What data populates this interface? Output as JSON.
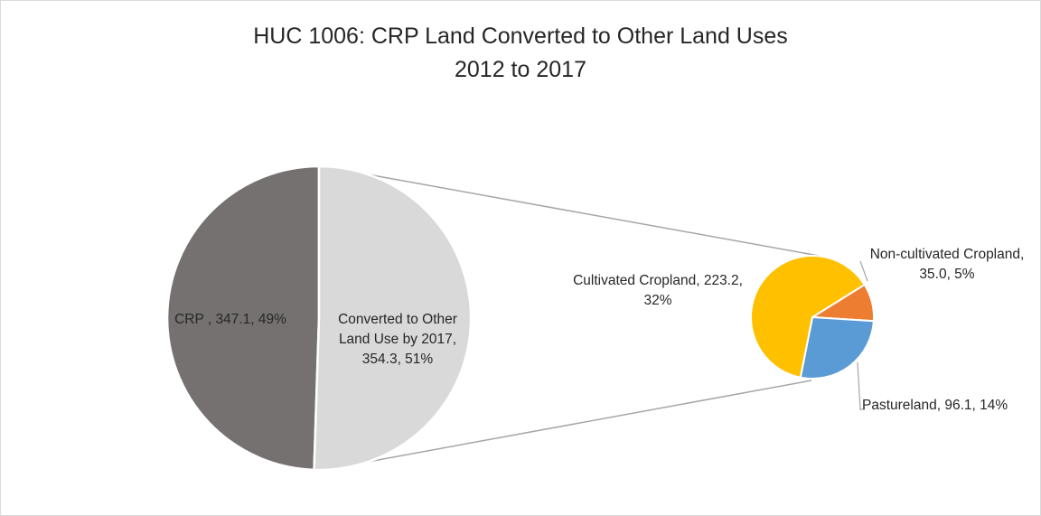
{
  "chart_data": {
    "type": "pie",
    "subtype": "pie-of-pie",
    "title": "HUC 1006: CRP Land Converted to Other Land Uses",
    "subtitle": "2012 to 2017",
    "main_pie": {
      "slices": [
        {
          "label_lines": [
            "CRP , 347.1, 49%"
          ],
          "value": 347.1,
          "percent": 49,
          "color": "#757171"
        },
        {
          "label_lines": [
            "Converted to Other",
            "Land Use by 2017,",
            "354.3, 51%"
          ],
          "value": 354.3,
          "percent": 51,
          "color": "#d9d9d9"
        }
      ]
    },
    "secondary_pie": {
      "slices": [
        {
          "label_lines": [
            "Non-cultivated Cropland,",
            "35.0, 5%"
          ],
          "value": 35.0,
          "percent": 5,
          "color": "#ed7d31"
        },
        {
          "label_lines": [
            "Pastureland, 96.1, 14%"
          ],
          "value": 96.1,
          "percent": 14,
          "color": "#5b9bd5"
        },
        {
          "label_lines": [
            "Cultivated Cropland, 223.2,",
            "32%"
          ],
          "value": 223.2,
          "percent": 32,
          "color": "#ffc000"
        }
      ]
    },
    "connector_color": "#a6a6a6",
    "leader_line_color": "#a6a6a6",
    "legend": "none"
  }
}
